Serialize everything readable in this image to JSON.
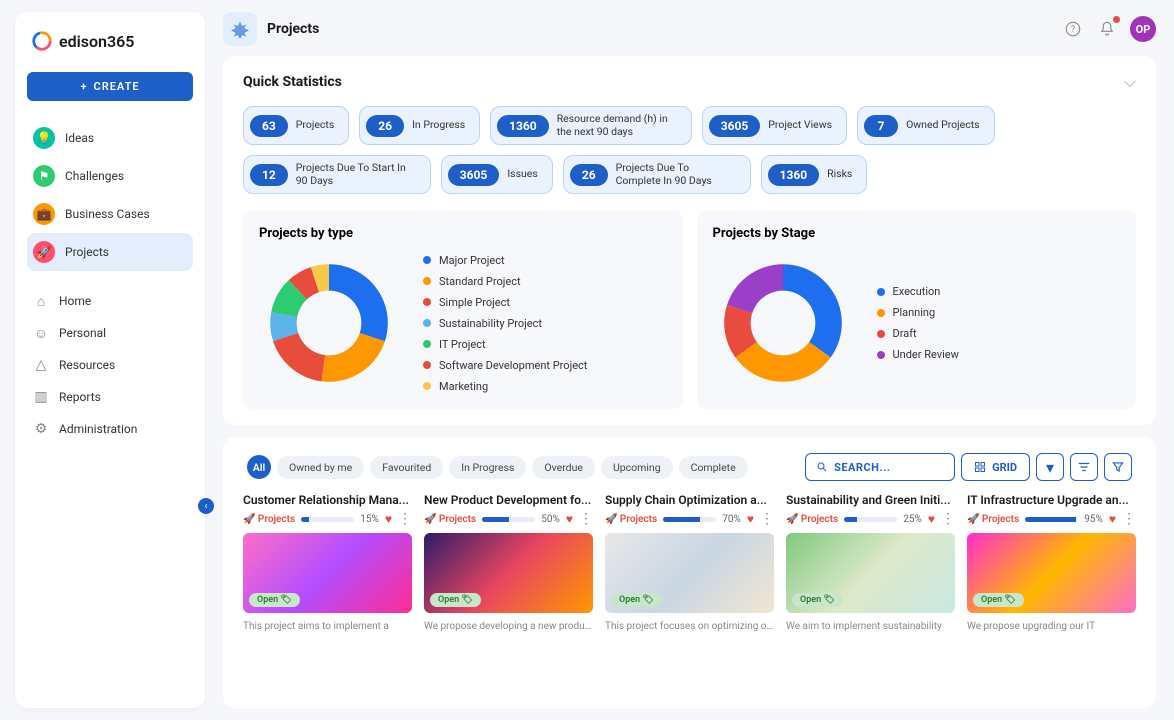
{
  "brand": {
    "name": "edison365"
  },
  "sidebar": {
    "create_label": "CREATE",
    "primary": [
      {
        "label": "Ideas",
        "icon_bg": "#00c4a7"
      },
      {
        "label": "Challenges",
        "icon_bg": "#2ecc71"
      },
      {
        "label": "Business Cases",
        "icon_bg": "#ff9800"
      },
      {
        "label": "Projects",
        "icon_bg": "#ff4d6d",
        "active": true
      }
    ],
    "secondary": [
      {
        "label": "Home"
      },
      {
        "label": "Personal"
      },
      {
        "label": "Resources"
      },
      {
        "label": "Reports"
      },
      {
        "label": "Administration"
      }
    ]
  },
  "header": {
    "title": "Projects",
    "avatar_initials": "OP",
    "avatar_bg": "#a033b8"
  },
  "quick_stats": {
    "title": "Quick Statistics",
    "items": [
      {
        "value": "63",
        "label": "Projects"
      },
      {
        "value": "26",
        "label": "In Progress"
      },
      {
        "value": "1360",
        "label": "Resource demand (h) in the next 90 days"
      },
      {
        "value": "3605",
        "label": "Project Views"
      },
      {
        "value": "7",
        "label": "Owned Projects"
      },
      {
        "value": "12",
        "label": "Projects Due To Start In 90 Days"
      },
      {
        "value": "3605",
        "label": "Issues"
      },
      {
        "value": "26",
        "label": "Projects Due To Complete In 90 Days"
      },
      {
        "value": "1360",
        "label": "Risks"
      }
    ]
  },
  "chart_type": {
    "title": "Projects by type",
    "type": "donut",
    "inner_radius": 0.55,
    "background_color": "#f6f8fc",
    "series": [
      {
        "label": "Major Project",
        "value": 30,
        "color": "#1e6ef0"
      },
      {
        "label": "Standard Project",
        "value": 22,
        "color": "#ff9800"
      },
      {
        "label": "Simple Project",
        "value": 18,
        "color": "#e74c3c"
      },
      {
        "label": "Sustainability Project",
        "value": 8,
        "color": "#5bb3e8"
      },
      {
        "label": "IT Project",
        "value": 10,
        "color": "#2ecc71"
      },
      {
        "label": "Software Development Project",
        "value": 7,
        "color": "#e74c3c"
      },
      {
        "label": "Marketing",
        "value": 5,
        "color": "#f7c948"
      }
    ]
  },
  "chart_stage": {
    "title": "Projects by Stage",
    "type": "donut",
    "inner_radius": 0.55,
    "background_color": "#f6f8fc",
    "series": [
      {
        "label": "Execution",
        "value": 35,
        "color": "#1e6ef0"
      },
      {
        "label": "Planning",
        "value": 30,
        "color": "#ff9800"
      },
      {
        "label": "Draft",
        "value": 15,
        "color": "#e74c3c"
      },
      {
        "label": "Under Review",
        "value": 20,
        "color": "#9b3fc9"
      }
    ]
  },
  "filters": {
    "all_label": "All",
    "chips": [
      "Owned by me",
      "Favourited",
      "In Progress",
      "Overdue",
      "Upcoming",
      "Complete"
    ],
    "search_placeholder": "SEARCH...",
    "grid_label": "GRID"
  },
  "cards": [
    {
      "title": "Customer Relationship Mana...",
      "tag": "Projects",
      "progress": 15,
      "desc": "This project aims to implement a",
      "img_gradient": "linear-gradient(135deg,#ff6ec7,#b34dff,#ff2d95)",
      "status": "Open"
    },
    {
      "title": "New Product Development fo...",
      "tag": "Projects",
      "progress": 50,
      "desc": "We propose developing a new product",
      "img_gradient": "linear-gradient(135deg,#2d1b69,#e94560,#ff9800)",
      "status": "Open"
    },
    {
      "title": "Supply Chain Optimization a...",
      "tag": "Projects",
      "progress": 70,
      "desc": "This project focuses on optimizing our",
      "img_gradient": "linear-gradient(135deg,#e8e8e8,#c9d6e3,#f0e6d2)",
      "status": "Open"
    },
    {
      "title": "Sustainability and Green Initi...",
      "tag": "Projects",
      "progress": 25,
      "desc": "We aim to implement sustainability",
      "img_gradient": "linear-gradient(135deg,#7fc97f,#dde8c9,#c9e8e3)",
      "status": "Open"
    },
    {
      "title": "IT Infrastructure Upgrade an...",
      "tag": "Projects",
      "progress": 95,
      "desc": "We propose upgrading our IT",
      "img_gradient": "linear-gradient(135deg,#ff2dd0,#ffb800,#ff6ec7)",
      "status": "Open"
    }
  ]
}
